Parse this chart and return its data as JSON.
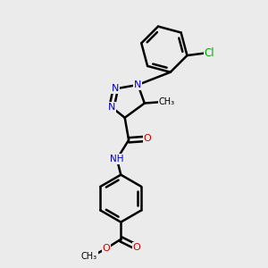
{
  "background_color": "#ebebeb",
  "bond_color": "#000000",
  "bond_width": 1.8,
  "atom_colors": {
    "N": "#0000cc",
    "O": "#cc0000",
    "Cl": "#00aa00"
  },
  "figsize": [
    3.0,
    3.0
  ],
  "dpi": 100,
  "xlim": [
    0,
    10
  ],
  "ylim": [
    0,
    10
  ]
}
